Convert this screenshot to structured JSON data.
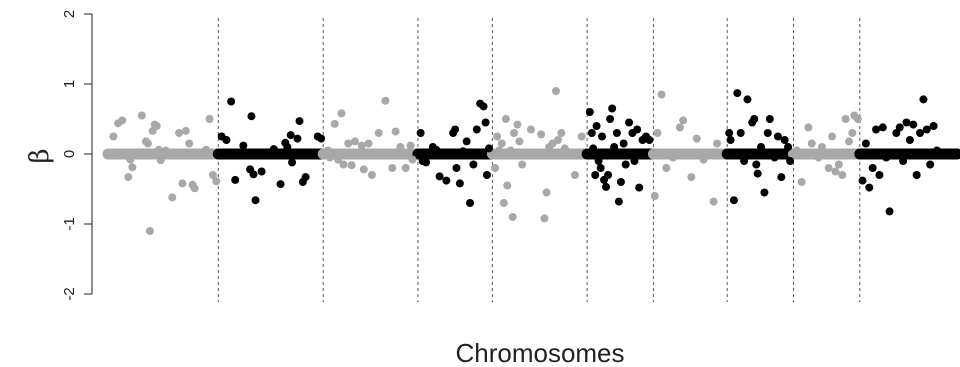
{
  "chart_data": {
    "type": "scatter",
    "title": "",
    "xlabel": "Chromosomes",
    "ylabel": "β",
    "ylim": [
      -2,
      2
    ],
    "yticks": [
      -2,
      -1,
      0,
      1,
      2
    ],
    "grid": false,
    "chromosome_boundaries": [
      0.0,
      0.163,
      0.318,
      0.458,
      0.568,
      0.708,
      0.806,
      0.915,
      1.013,
      1.111,
      1.255
    ],
    "colors": {
      "odd": "#a8a8a8",
      "even": "#000000"
    },
    "series": [
      {
        "segment": 1,
        "color": "gray",
        "points": [
          [
            0.008,
            0.25
          ],
          [
            0.015,
            0.44
          ],
          [
            0.021,
            0.48
          ],
          [
            0.03,
            -0.33
          ],
          [
            0.033,
            -0.08
          ],
          [
            0.036,
            -0.19
          ],
          [
            0.05,
            0.55
          ],
          [
            0.056,
            0.18
          ],
          [
            0.059,
            0.15
          ],
          [
            0.062,
            -1.1
          ],
          [
            0.066,
            0.33
          ],
          [
            0.069,
            0.42
          ],
          [
            0.072,
            0.4
          ],
          [
            0.075,
            0.06
          ],
          [
            0.078,
            -0.09
          ],
          [
            0.085,
            0.05
          ],
          [
            0.09,
            0.01
          ],
          [
            0.095,
            -0.62
          ],
          [
            0.105,
            0.3
          ],
          [
            0.11,
            -0.42
          ],
          [
            0.115,
            0.33
          ],
          [
            0.12,
            0.15
          ],
          [
            0.125,
            -0.44
          ],
          [
            0.128,
            -0.49
          ],
          [
            0.145,
            0.06
          ],
          [
            0.15,
            0.5
          ],
          [
            0.155,
            -0.3
          ],
          [
            0.16,
            -0.39
          ]
        ]
      },
      {
        "segment": 2,
        "color": "black",
        "points": [
          [
            0.168,
            0.25
          ],
          [
            0.175,
            0.2
          ],
          [
            0.182,
            0.75
          ],
          [
            0.188,
            -0.37
          ],
          [
            0.2,
            0.12
          ],
          [
            0.21,
            -0.22
          ],
          [
            0.212,
            0.54
          ],
          [
            0.215,
            -0.29
          ],
          [
            0.218,
            -0.66
          ],
          [
            0.227,
            -0.25
          ],
          [
            0.245,
            0.07
          ],
          [
            0.255,
            -0.43
          ],
          [
            0.262,
            0.16
          ],
          [
            0.265,
            0.1
          ],
          [
            0.27,
            0.27
          ],
          [
            0.272,
            -0.12
          ],
          [
            0.28,
            0.22
          ],
          [
            0.283,
            0.47
          ],
          [
            0.288,
            -0.4
          ],
          [
            0.292,
            -0.33
          ],
          [
            0.31,
            0.25
          ],
          [
            0.315,
            0.22
          ]
        ]
      },
      {
        "segment": 3,
        "color": "gray",
        "points": [
          [
            0.325,
            0.05
          ],
          [
            0.328,
            -0.05
          ],
          [
            0.335,
            0.43
          ],
          [
            0.34,
            -0.08
          ],
          [
            0.345,
            0.58
          ],
          [
            0.348,
            -0.15
          ],
          [
            0.355,
            0.15
          ],
          [
            0.36,
            -0.16
          ],
          [
            0.365,
            0.18
          ],
          [
            0.375,
            0.12
          ],
          [
            0.378,
            -0.22
          ],
          [
            0.385,
            0.15
          ],
          [
            0.39,
            -0.3
          ],
          [
            0.395,
            0.0
          ],
          [
            0.4,
            0.3
          ],
          [
            0.41,
            0.76
          ],
          [
            0.42,
            -0.2
          ],
          [
            0.425,
            0.32
          ],
          [
            0.432,
            0.1
          ],
          [
            0.44,
            -0.2
          ],
          [
            0.447,
            0.12
          ],
          [
            0.45,
            -0.08
          ]
        ]
      },
      {
        "segment": 4,
        "color": "black",
        "points": [
          [
            0.462,
            0.3
          ],
          [
            0.465,
            -0.1
          ],
          [
            0.47,
            -0.12
          ],
          [
            0.48,
            0.1
          ],
          [
            0.485,
            0.06
          ],
          [
            0.49,
            -0.32
          ],
          [
            0.495,
            0.0
          ],
          [
            0.5,
            -0.38
          ],
          [
            0.51,
            0.3
          ],
          [
            0.513,
            0.35
          ],
          [
            0.515,
            -0.2
          ],
          [
            0.52,
            -0.42
          ],
          [
            0.525,
            0.04
          ],
          [
            0.53,
            0.18
          ],
          [
            0.535,
            -0.7
          ],
          [
            0.54,
            -0.15
          ],
          [
            0.545,
            0.35
          ],
          [
            0.55,
            0.72
          ],
          [
            0.555,
            0.68
          ],
          [
            0.558,
            0.45
          ],
          [
            0.56,
            -0.3
          ],
          [
            0.563,
            0.08
          ]
        ]
      },
      {
        "segment": 5,
        "color": "gray",
        "points": [
          [
            0.572,
            -0.2
          ],
          [
            0.575,
            0.25
          ],
          [
            0.578,
            0.05
          ],
          [
            0.582,
            0.15
          ],
          [
            0.585,
            -0.7
          ],
          [
            0.588,
            0.5
          ],
          [
            0.59,
            -0.45
          ],
          [
            0.595,
            0.05
          ],
          [
            0.598,
            -0.9
          ],
          [
            0.6,
            0.3
          ],
          [
            0.605,
            0.42
          ],
          [
            0.608,
            0.18
          ],
          [
            0.612,
            -0.15
          ],
          [
            0.625,
            0.35
          ],
          [
            0.64,
            0.28
          ],
          [
            0.645,
            -0.92
          ],
          [
            0.648,
            -0.55
          ],
          [
            0.652,
            0.1
          ],
          [
            0.657,
            0.15
          ],
          [
            0.662,
            0.9
          ],
          [
            0.665,
            0.2
          ],
          [
            0.67,
            0.3
          ],
          [
            0.675,
            0.08
          ],
          [
            0.682,
            0.0
          ],
          [
            0.69,
            -0.3
          ],
          [
            0.7,
            0.25
          ]
        ]
      },
      {
        "segment": 6,
        "color": "black",
        "points": [
          [
            0.712,
            0.6
          ],
          [
            0.715,
            0.3
          ],
          [
            0.717,
            0.08
          ],
          [
            0.72,
            -0.3
          ],
          [
            0.722,
            0.4
          ],
          [
            0.725,
            -0.1
          ],
          [
            0.728,
            -0.2
          ],
          [
            0.73,
            0.25
          ],
          [
            0.733,
            -0.37
          ],
          [
            0.736,
            -0.47
          ],
          [
            0.739,
            -0.3
          ],
          [
            0.742,
            0.5
          ],
          [
            0.745,
            0.65
          ],
          [
            0.748,
            0.1
          ],
          [
            0.752,
            0.3
          ],
          [
            0.755,
            -0.68
          ],
          [
            0.758,
            -0.4
          ],
          [
            0.762,
            0.15
          ],
          [
            0.765,
            -0.15
          ],
          [
            0.77,
            0.45
          ],
          [
            0.775,
            0.3
          ],
          [
            0.778,
            -0.1
          ],
          [
            0.782,
            0.35
          ],
          [
            0.785,
            -0.48
          ],
          [
            0.79,
            0.2
          ],
          [
            0.795,
            0.25
          ],
          [
            0.8,
            0.2
          ]
        ]
      },
      {
        "segment": 7,
        "color": "gray",
        "points": [
          [
            0.808,
            -0.6
          ],
          [
            0.812,
            0.3
          ],
          [
            0.818,
            0.85
          ],
          [
            0.825,
            -0.2
          ],
          [
            0.835,
            -0.05
          ],
          [
            0.845,
            0.38
          ],
          [
            0.85,
            0.48
          ],
          [
            0.862,
            -0.33
          ],
          [
            0.87,
            0.22
          ],
          [
            0.88,
            -0.08
          ],
          [
            0.895,
            -0.68
          ],
          [
            0.9,
            0.15
          ]
        ]
      },
      {
        "segment": 8,
        "color": "black",
        "points": [
          [
            0.918,
            0.3
          ],
          [
            0.92,
            0.2
          ],
          [
            0.925,
            -0.66
          ],
          [
            0.93,
            0.87
          ],
          [
            0.935,
            0.3
          ],
          [
            0.94,
            -0.1
          ],
          [
            0.945,
            0.78
          ],
          [
            0.952,
            0.45
          ],
          [
            0.955,
            0.5
          ],
          [
            0.958,
            -0.15
          ],
          [
            0.96,
            -0.28
          ],
          [
            0.965,
            0.1
          ],
          [
            0.97,
            -0.55
          ],
          [
            0.975,
            0.3
          ],
          [
            0.978,
            0.5
          ],
          [
            0.985,
            -0.05
          ],
          [
            0.99,
            0.25
          ],
          [
            0.995,
            -0.33
          ],
          [
            1.0,
            0.2
          ],
          [
            1.005,
            0.1
          ],
          [
            1.008,
            -0.1
          ]
        ]
      },
      {
        "segment": 9,
        "color": "gray",
        "points": [
          [
            1.018,
            0.05
          ],
          [
            1.025,
            -0.4
          ],
          [
            1.035,
            0.38
          ],
          [
            1.04,
            0.15
          ],
          [
            1.05,
            -0.05
          ],
          [
            1.055,
            0.1
          ],
          [
            1.06,
            0.0
          ],
          [
            1.065,
            -0.2
          ],
          [
            1.07,
            0.25
          ],
          [
            1.075,
            -0.25
          ],
          [
            1.08,
            -0.15
          ],
          [
            1.085,
            -0.3
          ],
          [
            1.09,
            0.5
          ],
          [
            1.095,
            0.18
          ],
          [
            1.1,
            0.3
          ],
          [
            1.103,
            0.55
          ],
          [
            1.108,
            0.5
          ]
        ]
      },
      {
        "segment": 10,
        "color": "black",
        "points": [
          [
            1.115,
            -0.38
          ],
          [
            1.12,
            0.15
          ],
          [
            1.125,
            -0.48
          ],
          [
            1.13,
            -0.2
          ],
          [
            1.135,
            0.35
          ],
          [
            1.14,
            -0.3
          ],
          [
            1.145,
            0.38
          ],
          [
            1.15,
            -0.05
          ],
          [
            1.155,
            -0.82
          ],
          [
            1.16,
            0.0
          ],
          [
            1.165,
            0.3
          ],
          [
            1.17,
            0.38
          ],
          [
            1.175,
            -0.1
          ],
          [
            1.18,
            0.45
          ],
          [
            1.185,
            0.2
          ],
          [
            1.19,
            0.42
          ],
          [
            1.195,
            -0.3
          ],
          [
            1.2,
            0.3
          ],
          [
            1.205,
            0.78
          ],
          [
            1.21,
            0.35
          ],
          [
            1.215,
            -0.15
          ],
          [
            1.22,
            0.4
          ],
          [
            1.225,
            0.05
          ],
          [
            1.23,
            0.0
          ],
          [
            1.24,
            0.0
          ],
          [
            1.25,
            0.0
          ]
        ]
      }
    ]
  }
}
